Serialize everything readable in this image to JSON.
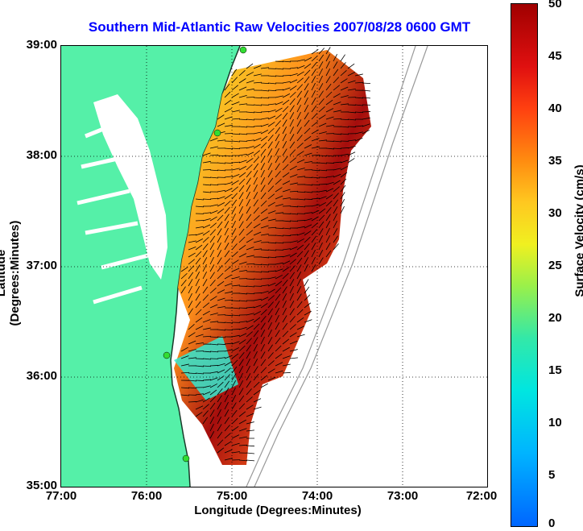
{
  "title": "Southern Mid-Atlantic Raw Velocities 2007/08/28 0600 GMT",
  "x_axis": {
    "label": "Longitude (Degrees:Minutes)",
    "ticks": [
      "77:00",
      "76:00",
      "75:00",
      "74:00",
      "73:00",
      "72:00"
    ]
  },
  "y_axis": {
    "label": "Latitude (Degrees:Minutes)",
    "ticks": [
      "39:00",
      "38:00",
      "37:00",
      "36:00",
      "35:00"
    ]
  },
  "colorbar": {
    "label": "Surface Velocity (cm/s)",
    "ticks": [
      "50",
      "45",
      "40",
      "35",
      "30",
      "25",
      "20",
      "15",
      "10",
      "5",
      "0"
    ],
    "range": [
      0,
      50
    ]
  },
  "colors": {
    "title": "#0000ff",
    "land": "#55f0a8",
    "stations": "#33dd33"
  },
  "map_extent": {
    "lon_range": [
      -77,
      -72
    ],
    "lat_range": [
      35,
      39
    ]
  },
  "grid": "dotted"
}
